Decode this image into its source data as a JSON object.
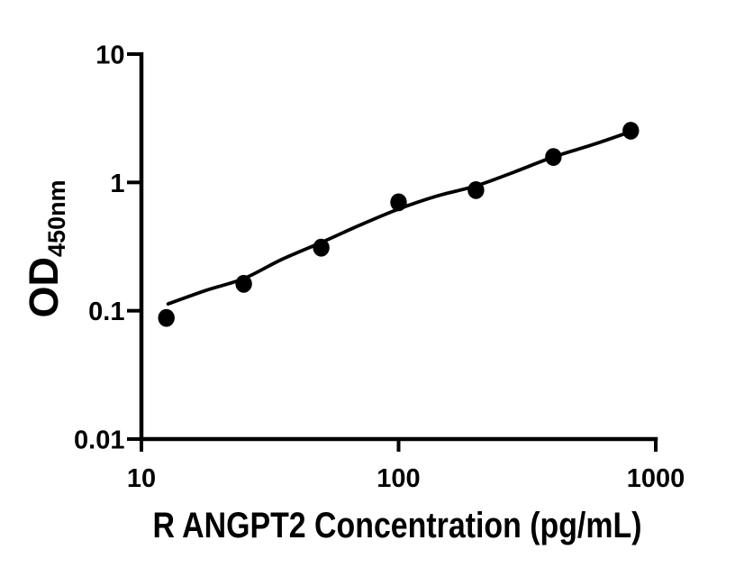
{
  "figure": {
    "background_color": "#ffffff",
    "foreground_color": "#000000"
  },
  "chart_data": {
    "type": "scatter",
    "title": "",
    "xlabel": "R ANGPT2 Concentration (pg/mL)",
    "ylabel_main": "OD",
    "ylabel_sub": "450nm",
    "x_scale": "log",
    "y_scale": "log",
    "xlim": [
      10,
      1000
    ],
    "ylim": [
      0.01,
      10
    ],
    "x_ticks": [
      10,
      100,
      1000
    ],
    "x_tick_labels": [
      "10",
      "100",
      "1000"
    ],
    "y_ticks": [
      10,
      1,
      0.1,
      0.01
    ],
    "y_tick_labels": [
      "10",
      "1",
      "0.1",
      "0.01"
    ],
    "grid": "off",
    "legend": "none",
    "marker": "filled-circle",
    "marker_color": "#000000",
    "line_color": "#000000",
    "points": [
      {
        "x": 12.5,
        "y": 0.088
      },
      {
        "x": 25,
        "y": 0.162
      },
      {
        "x": 50,
        "y": 0.31
      },
      {
        "x": 100,
        "y": 0.7
      },
      {
        "x": 200,
        "y": 0.87
      },
      {
        "x": 400,
        "y": 1.58
      },
      {
        "x": 800,
        "y": 2.53
      }
    ],
    "fit_curve": [
      [
        12.7,
        0.113
      ],
      [
        18,
        0.145
      ],
      [
        25,
        0.178
      ],
      [
        35,
        0.25
      ],
      [
        50,
        0.34
      ],
      [
        70,
        0.46
      ],
      [
        100,
        0.62
      ],
      [
        140,
        0.78
      ],
      [
        200,
        0.94
      ],
      [
        280,
        1.2
      ],
      [
        400,
        1.58
      ],
      [
        560,
        1.95
      ],
      [
        800,
        2.49
      ]
    ]
  }
}
